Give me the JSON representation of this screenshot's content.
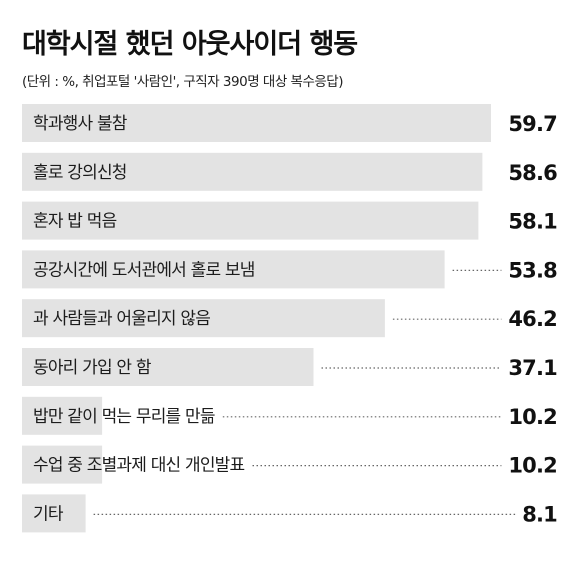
{
  "title": "대학시절 했던 아웃사이더 행동",
  "subtitle": "(단위 : %, 취업포털 '사람인', 구직자 390명 대상 복수응답)",
  "chart_data": {
    "type": "bar",
    "orientation": "horizontal",
    "title": "대학시절 했던 아웃사이더 행동",
    "subtitle": "(단위 : %, 취업포털 '사람인', 구직자 390명 대상 복수응답)",
    "unit": "%",
    "categories": [
      "학과행사 불참",
      "홀로 강의신청",
      "혼자 밥 먹음",
      "공강시간에 도서관에서 홀로 보냄",
      "과 사람들과 어울리지 않음",
      "동아리 가입 안 함",
      "밥만 같이 먹는 무리를 만듦",
      "수업 중 조별과제 대신 개인발표",
      "기타"
    ],
    "values": [
      59.7,
      58.6,
      58.1,
      53.8,
      46.2,
      37.1,
      10.2,
      10.2,
      8.1
    ],
    "value_labels": [
      "59.7",
      "58.6",
      "58.1",
      "53.8",
      "46.2",
      "37.1",
      "10.2",
      "10.2",
      "8.1"
    ],
    "xlim": [
      0,
      59.7
    ],
    "bar_color": "#e3e3e3",
    "grid": false,
    "legend": false
  }
}
